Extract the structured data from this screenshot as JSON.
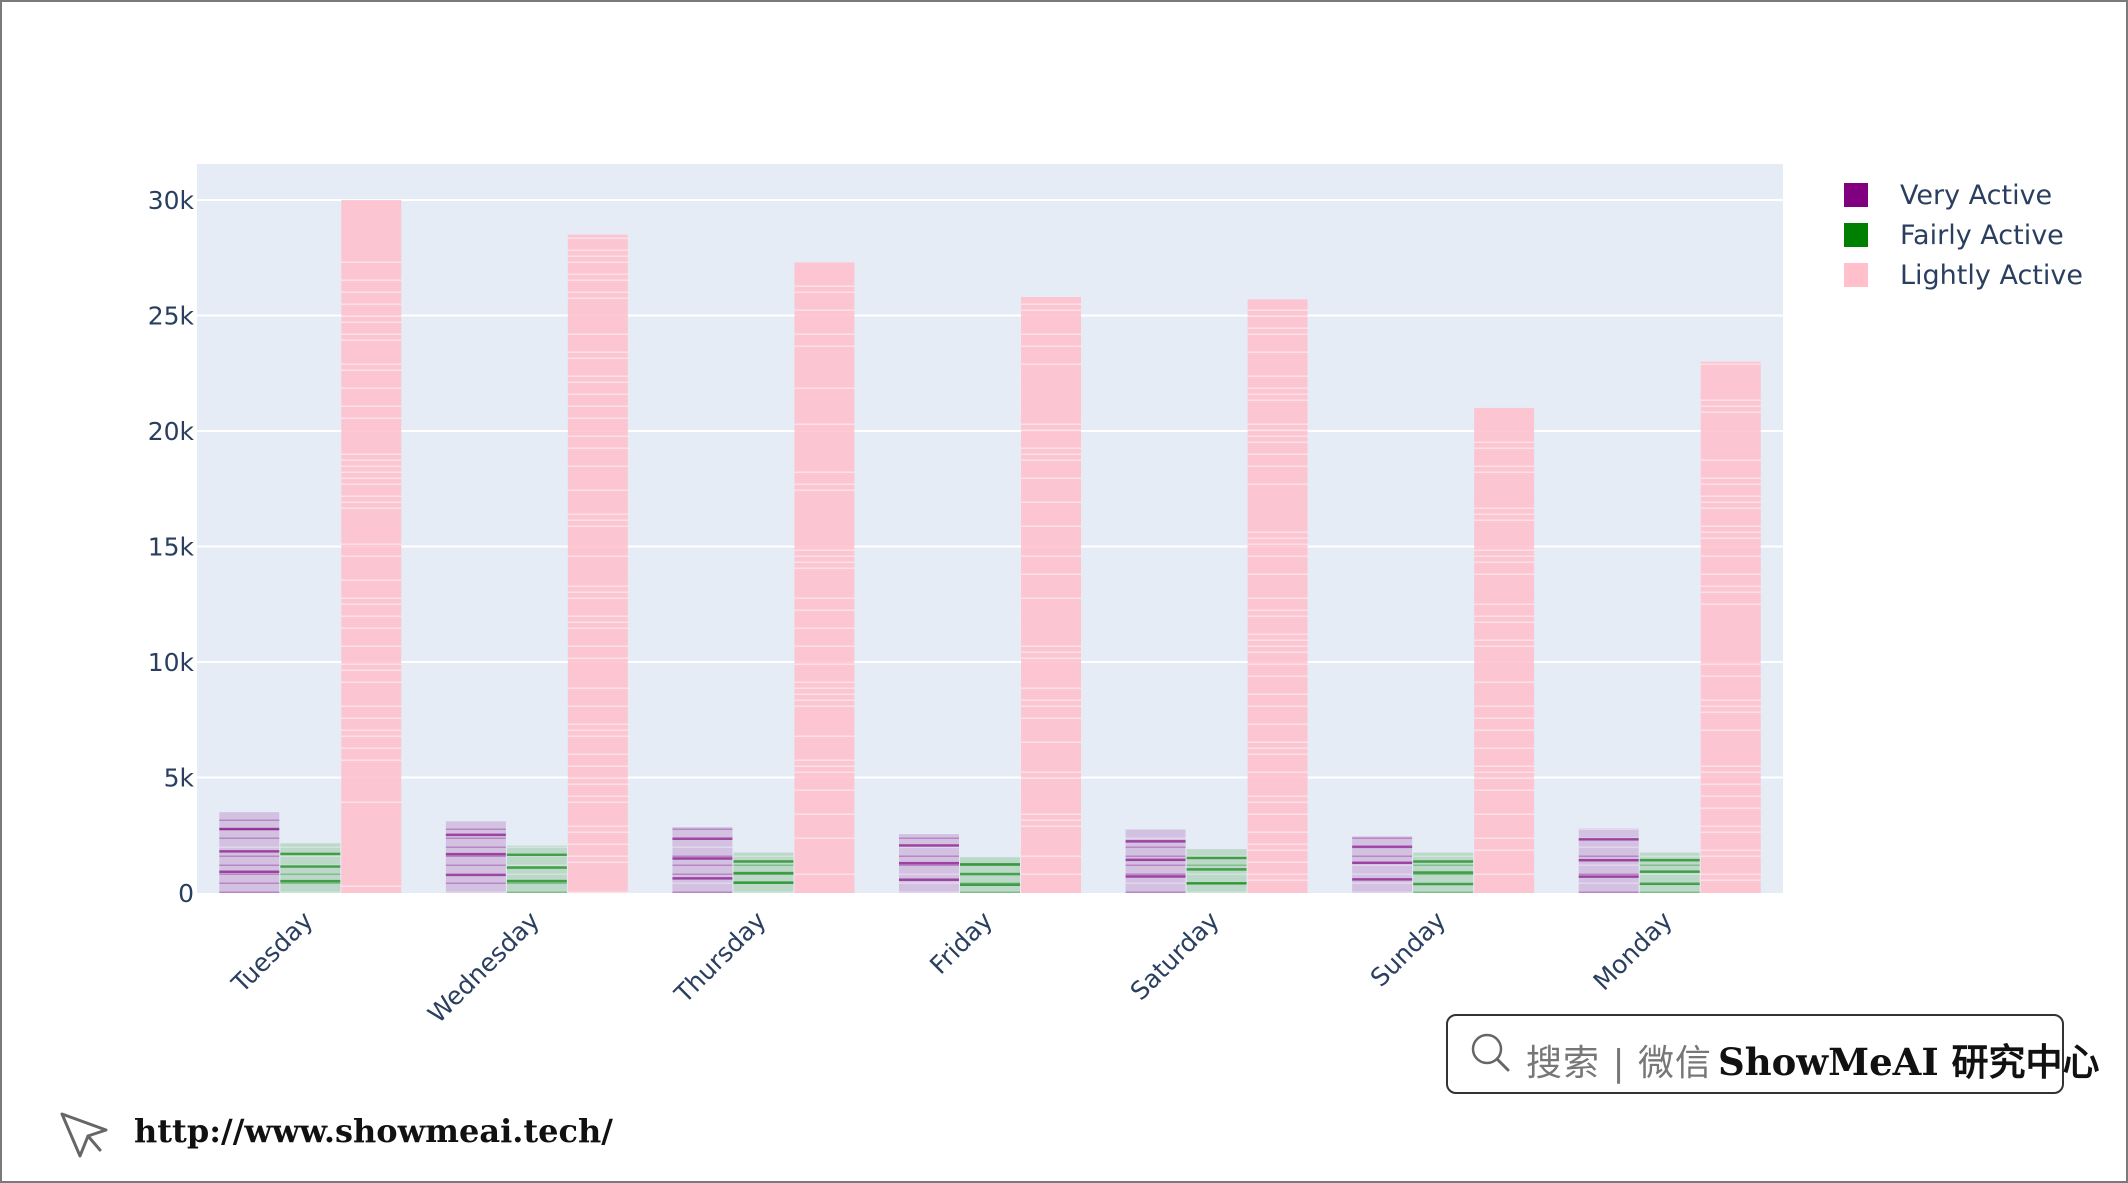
{
  "chart_data": {
    "type": "bar",
    "barmode": "group",
    "categories": [
      "Tuesday",
      "Wednesday",
      "Thursday",
      "Friday",
      "Saturday",
      "Sunday",
      "Monday"
    ],
    "series": [
      {
        "name": "Very Active",
        "color": "#800080",
        "values": [
          3500,
          3100,
          2850,
          2550,
          2750,
          2450,
          2800
        ]
      },
      {
        "name": "Fairly Active",
        "color": "#008000",
        "values": [
          2150,
          2050,
          1750,
          1550,
          1900,
          1750,
          1750
        ]
      },
      {
        "name": "Lightly Active",
        "color": "#FFC0CB",
        "values": [
          30000,
          28500,
          27300,
          25800,
          25700,
          21000,
          23000
        ]
      }
    ],
    "y_ticks": [
      0,
      5000,
      10000,
      15000,
      20000,
      25000,
      30000
    ],
    "y_tick_labels": [
      "0",
      "5k",
      "10k",
      "15k",
      "20k",
      "25k",
      "30k"
    ],
    "ylim": [
      0,
      31500
    ],
    "grid": true,
    "legend_position": "top-right",
    "plot_background": "#E5ECF6"
  },
  "watermark": {
    "search_text": "搜索 | 微信",
    "brand_text": "ShowMeAI 研究中心"
  },
  "footer": {
    "url": "http://www.showmeai.tech/"
  }
}
